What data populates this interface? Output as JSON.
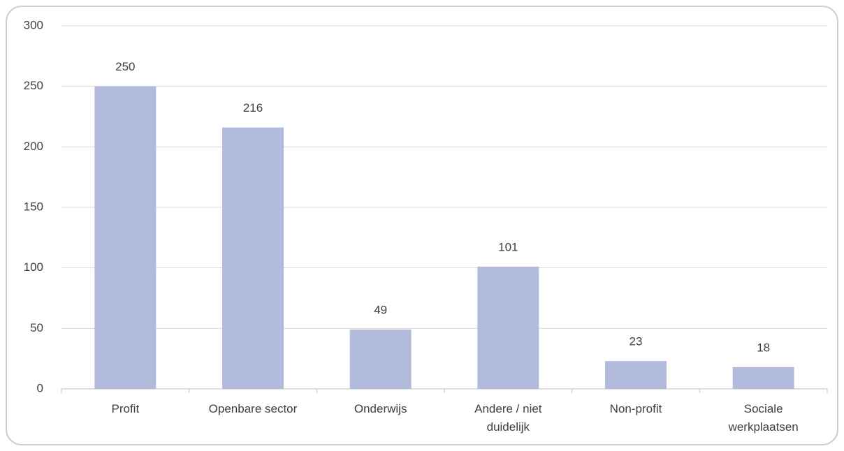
{
  "chart_data": {
    "type": "bar",
    "categories": [
      "Profit",
      "Openbare sector",
      "Onderwijs",
      "Andere / niet duidelijk",
      "Non-profit",
      "Sociale werkplaatsen"
    ],
    "values": [
      250,
      216,
      49,
      101,
      23,
      18
    ],
    "color": "#b3bbdd",
    "ylim": [
      0,
      300
    ],
    "yticks": [
      0,
      50,
      100,
      150,
      200,
      250,
      300
    ],
    "grid": true
  }
}
